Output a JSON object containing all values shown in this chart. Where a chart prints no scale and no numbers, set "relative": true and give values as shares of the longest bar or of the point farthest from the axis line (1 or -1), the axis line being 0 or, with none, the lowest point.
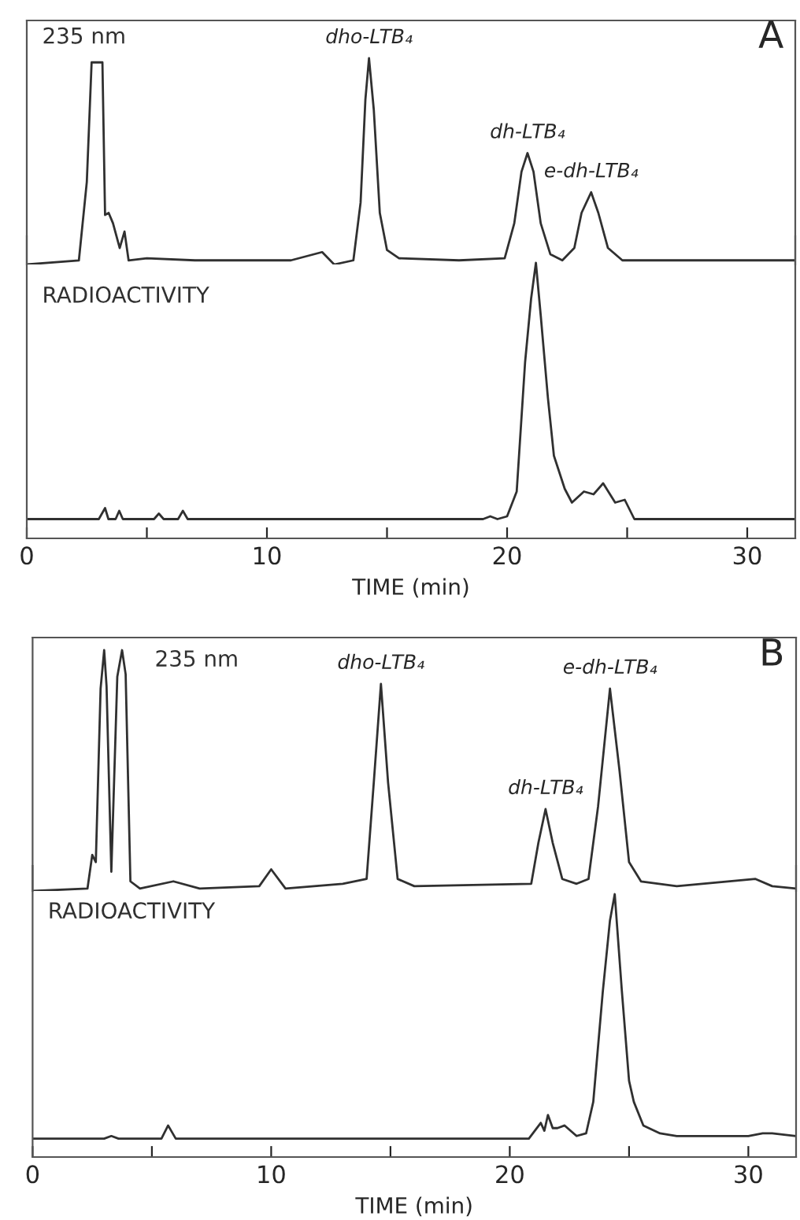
{
  "chart_data": [
    {
      "type": "line",
      "title": "A",
      "relative": true,
      "xlim": [
        0,
        32
      ],
      "tick_labels": false,
      "legend": false,
      "series": [
        {
          "name": "235 nm",
          "color": "#303030",
          "x": [
            0,
            2.17,
            2.5,
            2.7,
            3.15,
            3.26,
            3.41,
            3.59,
            3.87,
            4.07,
            4.24,
            5,
            7,
            11,
            12.3,
            12.8,
            13.6,
            13.9,
            14.1,
            14.25,
            14.45,
            14.7,
            15.0,
            15.5,
            18,
            19.9,
            20.3,
            20.6,
            20.85,
            21.1,
            21.4,
            21.8,
            22.3,
            22.8,
            23.1,
            23.5,
            23.8,
            24.2,
            24.8,
            27,
            32
          ],
          "values": [
            0.0,
            0.02,
            0.4,
            0.98,
            0.98,
            0.24,
            0.25,
            0.2,
            0.08,
            0.16,
            0.02,
            0.03,
            0.02,
            0.02,
            0.06,
            0.0,
            0.02,
            0.3,
            0.8,
            1.0,
            0.75,
            0.25,
            0.07,
            0.03,
            0.02,
            0.03,
            0.2,
            0.45,
            0.54,
            0.45,
            0.2,
            0.05,
            0.02,
            0.08,
            0.25,
            0.35,
            0.25,
            0.08,
            0.02,
            0.02,
            0.02
          ]
        }
      ],
      "annotations": [
        {
          "text": "dho-LTB₄",
          "x": 14.25,
          "y": 1.0
        },
        {
          "text": "dh-LTB₄",
          "x": 20.85,
          "y": 0.54
        },
        {
          "text": "e-dh-LTB₄",
          "x": 23.5,
          "y": 0.35
        }
      ]
    },
    {
      "type": "line",
      "relative": true,
      "xlim": [
        0,
        32
      ],
      "xlabel": "TIME (min)",
      "tick_labels": "x",
      "legend": false,
      "xticks": [
        0,
        {
          "value": 5,
          "label": null
        },
        10,
        {
          "value": 15,
          "label": null
        },
        20,
        {
          "value": 25,
          "label": null
        },
        30
      ],
      "series": [
        {
          "name": "RADIOACTIVITY",
          "color": "#303030",
          "x": [
            0,
            3.0,
            3.26,
            3.4,
            3.7,
            3.85,
            4.0,
            5.3,
            5.5,
            5.7,
            6.3,
            6.5,
            6.7,
            10,
            19.0,
            19.3,
            19.6,
            20.0,
            20.4,
            20.75,
            21.0,
            21.2,
            21.4,
            21.7,
            21.95,
            22.4,
            22.7,
            23.2,
            23.6,
            24.0,
            24.5,
            24.9,
            25.3,
            28,
            32
          ],
          "values": [
            0.07,
            0.07,
            0.11,
            0.07,
            0.07,
            0.1,
            0.07,
            0.07,
            0.09,
            0.07,
            0.07,
            0.1,
            0.07,
            0.07,
            0.07,
            0.08,
            0.07,
            0.08,
            0.17,
            0.64,
            0.87,
            1.0,
            0.81,
            0.51,
            0.3,
            0.18,
            0.13,
            0.17,
            0.16,
            0.2,
            0.13,
            0.14,
            0.07,
            0.07,
            0.07
          ]
        }
      ]
    },
    {
      "type": "line",
      "title": "B",
      "relative": true,
      "xlim": [
        0,
        32
      ],
      "tick_labels": false,
      "legend": false,
      "series": [
        {
          "name": "235 nm",
          "color": "#303030",
          "x": [
            0,
            2.3,
            2.5,
            2.65,
            2.85,
            3.0,
            3.1,
            3.3,
            3.55,
            3.75,
            3.9,
            4.1,
            4.5,
            5.9,
            7,
            9.5,
            10.0,
            10.6,
            13,
            14.0,
            14.3,
            14.6,
            14.9,
            15.3,
            16,
            20.9,
            21.2,
            21.5,
            21.8,
            22.2,
            22.8,
            23.3,
            23.7,
            24.2,
            24.6,
            25.0,
            25.5,
            27,
            30.3,
            31,
            32
          ],
          "values": [
            0.0,
            0.01,
            0.15,
            0.12,
            0.84,
            1.0,
            0.85,
            0.08,
            0.89,
            1.0,
            0.9,
            0.04,
            0.01,
            0.04,
            0.01,
            0.02,
            0.09,
            0.01,
            0.03,
            0.05,
            0.45,
            0.86,
            0.45,
            0.05,
            0.02,
            0.03,
            0.2,
            0.34,
            0.2,
            0.05,
            0.03,
            0.05,
            0.35,
            0.84,
            0.5,
            0.12,
            0.04,
            0.02,
            0.05,
            0.02,
            0.01
          ]
        }
      ],
      "annotations": [
        {
          "text": "dho-LTB₄",
          "x": 14.6,
          "y": 0.86
        },
        {
          "text": "dh-LTB₄",
          "x": 21.5,
          "y": 0.34
        },
        {
          "text": "e-dh-LTB₄",
          "x": 24.2,
          "y": 0.84
        }
      ]
    },
    {
      "type": "line",
      "relative": true,
      "xlim": [
        0,
        32
      ],
      "xlabel": "TIME (min)",
      "tick_labels": "x",
      "legend": false,
      "xticks": [
        0,
        {
          "value": 5,
          "label": null
        },
        10,
        {
          "value": 15,
          "label": null
        },
        20,
        {
          "value": 25,
          "label": null
        },
        30
      ],
      "series": [
        {
          "name": "RADIOACTIVITY",
          "color": "#303030",
          "x": [
            0,
            3.0,
            3.3,
            3.6,
            5.4,
            5.68,
            6.0,
            20.8,
            21.3,
            21.45,
            21.6,
            21.8,
            22.0,
            22.3,
            22.8,
            23.2,
            23.5,
            23.9,
            24.2,
            24.4,
            24.7,
            25.0,
            25.2,
            25.6,
            26.3,
            27,
            30.0,
            30.6,
            31,
            32
          ],
          "values": [
            0.07,
            0.07,
            0.08,
            0.07,
            0.07,
            0.12,
            0.07,
            0.07,
            0.13,
            0.1,
            0.16,
            0.11,
            0.11,
            0.12,
            0.08,
            0.09,
            0.21,
            0.63,
            0.9,
            1.0,
            0.63,
            0.29,
            0.21,
            0.12,
            0.09,
            0.08,
            0.08,
            0.09,
            0.09,
            0.08
          ]
        }
      ]
    }
  ]
}
